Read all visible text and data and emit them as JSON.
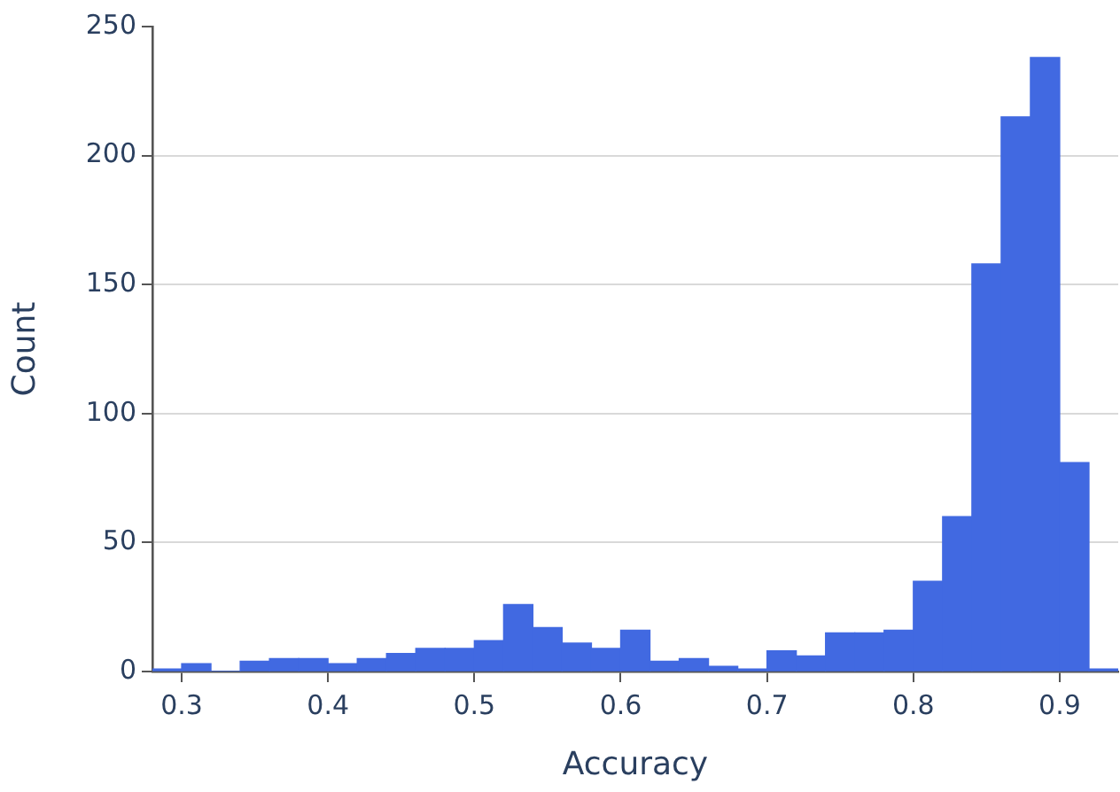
{
  "chart_data": {
    "type": "histogram",
    "xlabel": "Accuracy",
    "ylabel": "Count",
    "bins": [
      0.28,
      0.3,
      0.32,
      0.34,
      0.36,
      0.38,
      0.4,
      0.42,
      0.44,
      0.46,
      0.48,
      0.5,
      0.52,
      0.54,
      0.56,
      0.58,
      0.6,
      0.62,
      0.64,
      0.66,
      0.68,
      0.7,
      0.72,
      0.74,
      0.76,
      0.78,
      0.8,
      0.82,
      0.84,
      0.86,
      0.88,
      0.9,
      0.92,
      0.94
    ],
    "values": [
      1,
      3,
      0,
      4,
      5,
      5,
      3,
      5,
      7,
      9,
      9,
      12,
      26,
      17,
      11,
      9,
      16,
      4,
      5,
      2,
      1,
      8,
      6,
      15,
      15,
      16,
      35,
      60,
      158,
      215,
      238,
      81,
      1
    ],
    "color": "#4169e1",
    "xlim": [
      0.28,
      0.94
    ],
    "ylim": [
      0,
      250
    ],
    "xticks": [
      0.3,
      0.4,
      0.5,
      0.6,
      0.7,
      0.8,
      0.9
    ],
    "yticks": [
      0,
      50,
      100,
      150,
      200,
      250
    ],
    "grid": "y"
  }
}
